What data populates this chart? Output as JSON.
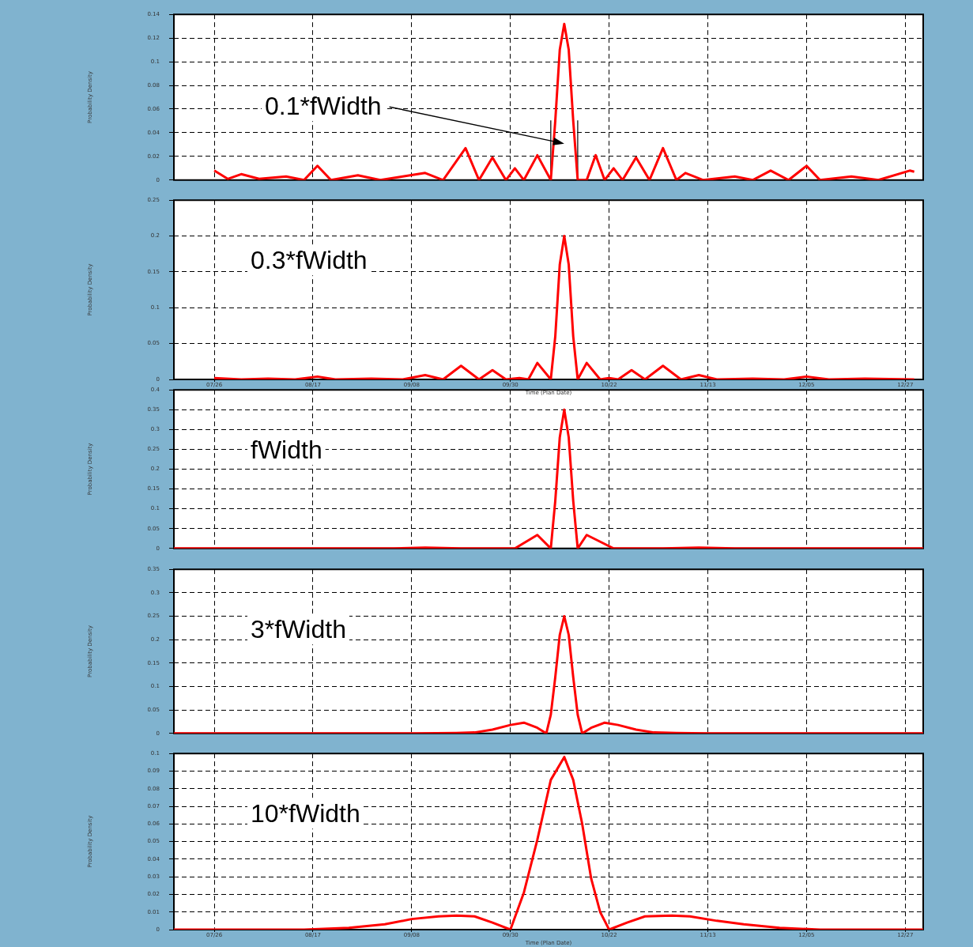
{
  "chart_data": [
    {
      "type": "line",
      "annotations": [
        "0.1*fWidth"
      ],
      "ref_lines": [
        {
          "axis": "x",
          "value": "--10-09",
          "color": "#000000"
        },
        {
          "axis": "x",
          "value": "--10-15",
          "color": "#000000"
        }
      ],
      "ylabel": "Probability Density",
      "color": "#ff0000",
      "marker": "none",
      "line_style": "solid",
      "grid": true,
      "tick_labels": "y",
      "x": [
        "--07-26",
        "--07-29",
        "--08-01",
        "--08-05",
        "--08-11",
        "--08-15",
        "--08-18",
        "--08-21",
        "--08-27",
        "--09-01",
        "--09-06",
        "--09-11",
        "--09-15",
        "--09-20",
        "--09-23",
        "--09-26",
        "--09-29",
        "--10-01",
        "--10-03",
        "--10-06",
        "--10-09",
        "--10-10",
        "--10-11",
        "--10-12",
        "--10-13",
        "--10-14",
        "--10-15",
        "--10-17",
        "--10-19",
        "--10-21",
        "--10-23",
        "--10-25",
        "--10-28",
        "--10-31",
        "--11-03",
        "--11-06",
        "--11-08",
        "--11-12",
        "--11-19",
        "--11-23",
        "--11-27",
        "--12-01",
        "--12-05",
        "--12-08",
        "--12-15",
        "--12-21",
        "--12-28",
        "--12-29"
      ],
      "values": [
        0.008,
        0.001,
        0.005,
        0.001,
        0.003,
        0,
        0.012,
        0,
        0.004,
        0,
        0.003,
        0.006,
        0,
        0.027,
        0,
        0.019,
        0,
        0.01,
        0,
        0.021,
        0,
        0.05,
        0.11,
        0.132,
        0.11,
        0.05,
        0,
        0,
        0.021,
        0,
        0.01,
        0,
        0.019,
        0,
        0.027,
        0,
        0.006,
        0,
        0.003,
        0,
        0.008,
        0,
        0.012,
        0,
        0.003,
        0,
        0.008,
        0.007
      ],
      "xlim": [
        "--07-17",
        "--12-31"
      ],
      "xticks": [
        "--07-26",
        "--08-17",
        "--09-08",
        "--09-30",
        "--10-22",
        "--11-13",
        "--12-05",
        "--12-27"
      ],
      "ylim": [
        0,
        0.14
      ],
      "yticks": [
        0,
        0.02,
        0.04,
        0.06,
        0.08,
        0.1,
        0.12,
        0.14
      ]
    },
    {
      "type": "line",
      "title": "0.3*fWidth",
      "xlabel": "Time (Plan Date)",
      "ylabel": "Probability Density",
      "color": "#ff0000",
      "marker": "none",
      "line_style": "solid",
      "grid": true,
      "x": [
        "--07-26",
        "--08-01",
        "--08-07",
        "--08-13",
        "--08-18",
        "--08-22",
        "--08-30",
        "--09-06",
        "--09-11",
        "--09-15",
        "--09-19",
        "--09-23",
        "--09-26",
        "--09-29",
        "--10-02",
        "--10-04",
        "--10-06",
        "--10-09",
        "--10-10",
        "--10-11",
        "--10-12",
        "--10-13",
        "--10-14",
        "--10-15",
        "--10-17",
        "--10-20",
        "--10-22",
        "--10-24",
        "--10-27",
        "--10-30",
        "--11-03",
        "--11-07",
        "--11-11",
        "--11-15",
        "--11-23",
        "--11-30",
        "--12-05",
        "--12-10",
        "--12-18",
        "--12-29"
      ],
      "values": [
        0.002,
        0,
        0.001,
        0,
        0.004,
        0,
        0.001,
        0,
        0.006,
        0,
        0.019,
        0,
        0.013,
        0,
        0.002,
        0,
        0.023,
        0,
        0.06,
        0.16,
        0.2,
        0.16,
        0.06,
        0,
        0.023,
        0,
        0.002,
        0,
        0.013,
        0,
        0.019,
        0,
        0.006,
        0,
        0.001,
        0,
        0.004,
        0,
        0.001,
        0
      ],
      "xlim": [
        "--07-17",
        "--12-31"
      ],
      "xticks": [
        {
          "value": "--07-26",
          "label": "07/26"
        },
        {
          "value": "--08-17",
          "label": "08/17"
        },
        {
          "value": "--09-08",
          "label": "09/08"
        },
        {
          "value": "--09-30",
          "label": "09/30"
        },
        {
          "value": "--10-22",
          "label": "10/22"
        },
        {
          "value": "--11-13",
          "label": "11/13"
        },
        {
          "value": "--12-05",
          "label": "12/05"
        },
        {
          "value": "--12-27",
          "label": "12/27"
        }
      ],
      "ylim": [
        0,
        0.25
      ],
      "yticks": [
        0,
        0.05,
        0.1,
        0.15,
        0.2,
        0.25
      ]
    },
    {
      "type": "line",
      "title": "fWidth",
      "ylabel": "Probability Density",
      "color": "#ff0000",
      "marker": "none",
      "line_style": "solid",
      "grid": true,
      "tick_labels": "y",
      "x": [
        "--07-17",
        "--09-04",
        "--09-11",
        "--09-19",
        "--10-01",
        "--10-06",
        "--10-09",
        "--10-10",
        "--10-11",
        "--10-12",
        "--10-13",
        "--10-14",
        "--10-15",
        "--10-17",
        "--10-23",
        "--11-03",
        "--11-11",
        "--11-19",
        "--12-31"
      ],
      "values": [
        0,
        0,
        0.002,
        0,
        0,
        0.034,
        0,
        0.12,
        0.28,
        0.35,
        0.28,
        0.12,
        0,
        0.034,
        0,
        0,
        0.002,
        0,
        0
      ],
      "xlim": [
        "--07-17",
        "--12-31"
      ],
      "xticks": [
        "--07-26",
        "--08-17",
        "--09-08",
        "--09-30",
        "--10-22",
        "--11-13",
        "--12-05",
        "--12-27"
      ],
      "ylim": [
        0,
        0.4
      ],
      "yticks": [
        0,
        0.05,
        0.1,
        0.15,
        0.2,
        0.25,
        0.3,
        0.35,
        0.4
      ]
    },
    {
      "type": "line",
      "title": "3*fWidth",
      "ylabel": "Probability Density",
      "color": "#ff0000",
      "marker": "none",
      "line_style": "solid",
      "grid": true,
      "tick_labels": "y",
      "x": [
        "--07-17",
        "--09-09",
        "--09-18",
        "--09-22",
        "--09-26",
        "--09-30",
        "--10-03",
        "--10-06",
        "--10-08",
        "--10-09",
        "--10-10",
        "--10-11",
        "--10-12",
        "--10-13",
        "--10-14",
        "--10-15",
        "--10-16",
        "--10-18",
        "--10-21",
        "--10-24",
        "--10-28",
        "--11-01",
        "--11-06",
        "--11-13",
        "--12-31"
      ],
      "values": [
        0,
        0,
        0.001,
        0.002,
        0.008,
        0.018,
        0.023,
        0.012,
        0,
        0.04,
        0.12,
        0.21,
        0.25,
        0.21,
        0.12,
        0.04,
        0,
        0.012,
        0.023,
        0.018,
        0.008,
        0.002,
        0.001,
        0,
        0
      ],
      "xlim": [
        "--07-17",
        "--12-31"
      ],
      "xticks": [
        "--07-26",
        "--08-17",
        "--09-08",
        "--09-30",
        "--10-22",
        "--11-13",
        "--12-05",
        "--12-27"
      ],
      "ylim": [
        0,
        0.35
      ],
      "yticks": [
        0,
        0.05,
        0.1,
        0.15,
        0.2,
        0.25,
        0.3,
        0.35
      ]
    },
    {
      "type": "line",
      "title": "10*fWidth",
      "xlabel": "Time (Plan Date)",
      "ylabel": "Probability Density",
      "color": "#ff0000",
      "marker": "none",
      "line_style": "solid",
      "grid": true,
      "x": [
        "--07-17",
        "--08-15",
        "--08-25",
        "--09-02",
        "--09-08",
        "--09-14",
        "--09-18",
        "--09-22",
        "--09-26",
        "--09-30",
        "--10-03",
        "--10-06",
        "--10-09",
        "--10-12",
        "--10-14",
        "--10-16",
        "--10-18",
        "--10-20",
        "--10-22",
        "--10-26",
        "--10-30",
        "--11-05",
        "--11-09",
        "--11-15",
        "--11-21",
        "--11-29",
        "--12-08",
        "--12-31"
      ],
      "values": [
        0,
        0,
        0.001,
        0.003,
        0.006,
        0.0075,
        0.008,
        0.0075,
        0.004,
        0,
        0.021,
        0.051,
        0.085,
        0.098,
        0.085,
        0.06,
        0.029,
        0.01,
        0,
        0.004,
        0.0075,
        0.008,
        0.0075,
        0.005,
        0.003,
        0.001,
        0,
        0
      ],
      "xlim": [
        "--07-17",
        "--12-31"
      ],
      "xticks": [
        {
          "value": "--07-26",
          "label": "07/26"
        },
        {
          "value": "--08-17",
          "label": "08/17"
        },
        {
          "value": "--09-08",
          "label": "09/08"
        },
        {
          "value": "--09-30",
          "label": "09/30"
        },
        {
          "value": "--10-22",
          "label": "10/22"
        },
        {
          "value": "--11-13",
          "label": "11/13"
        },
        {
          "value": "--12-05",
          "label": "12/05"
        },
        {
          "value": "--12-27",
          "label": "12/27"
        }
      ],
      "ylim": [
        0,
        0.1
      ],
      "yticks": [
        0,
        0.01,
        0.02,
        0.03,
        0.04,
        0.05,
        0.06,
        0.07,
        0.08,
        0.09,
        0.1
      ]
    }
  ]
}
